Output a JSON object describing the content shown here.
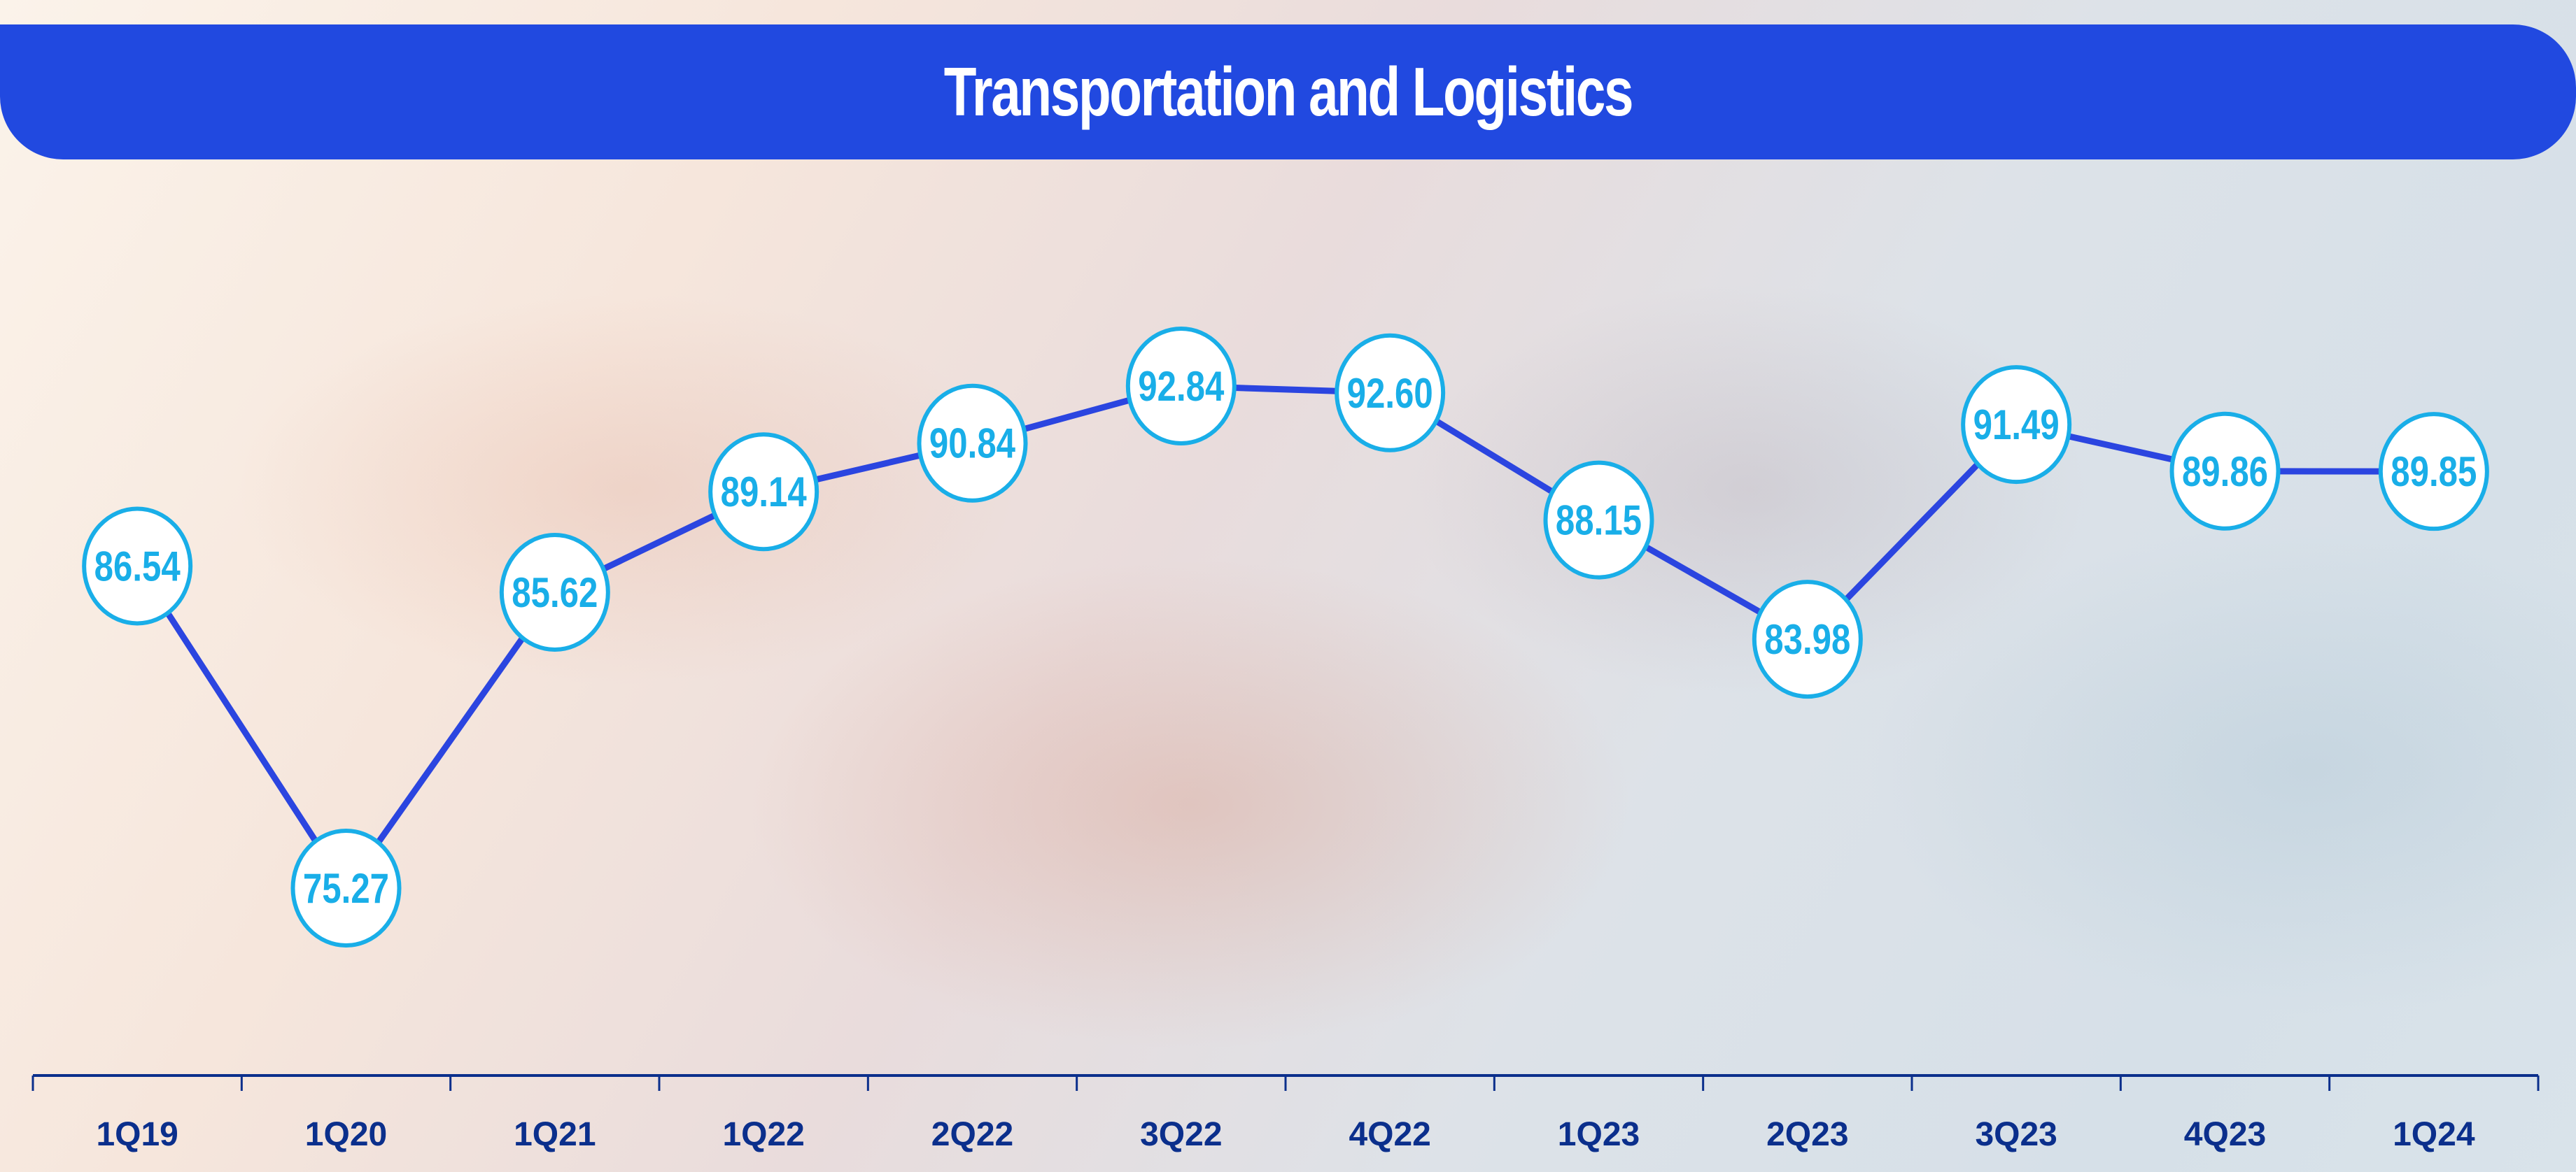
{
  "title": "Transportation and Logistics",
  "colors": {
    "title_bar": "#2149e0",
    "line": "#2b45e0",
    "marker_border": "#19aee8",
    "value_text": "#19aee8",
    "axis": "#0b2f8c"
  },
  "chart_data": {
    "type": "line",
    "title": "Transportation and Logistics",
    "categories": [
      "1Q19",
      "1Q20",
      "1Q21",
      "1Q22",
      "2Q22",
      "3Q22",
      "4Q22",
      "1Q23",
      "2Q23",
      "3Q23",
      "4Q23",
      "1Q24"
    ],
    "values": [
      86.54,
      75.27,
      85.62,
      89.14,
      90.84,
      92.84,
      92.6,
      88.15,
      83.98,
      91.49,
      89.86,
      89.85
    ],
    "value_labels": [
      "86.54",
      "75.27",
      "85.62",
      "89.14",
      "90.84",
      "92.84",
      "92.60",
      "88.15",
      "83.98",
      "91.49",
      "89.86",
      "89.85"
    ],
    "xlabel": "",
    "ylabel": "",
    "grid": false,
    "y_axis_visible": false,
    "data_labels": "in-circle-markers"
  }
}
